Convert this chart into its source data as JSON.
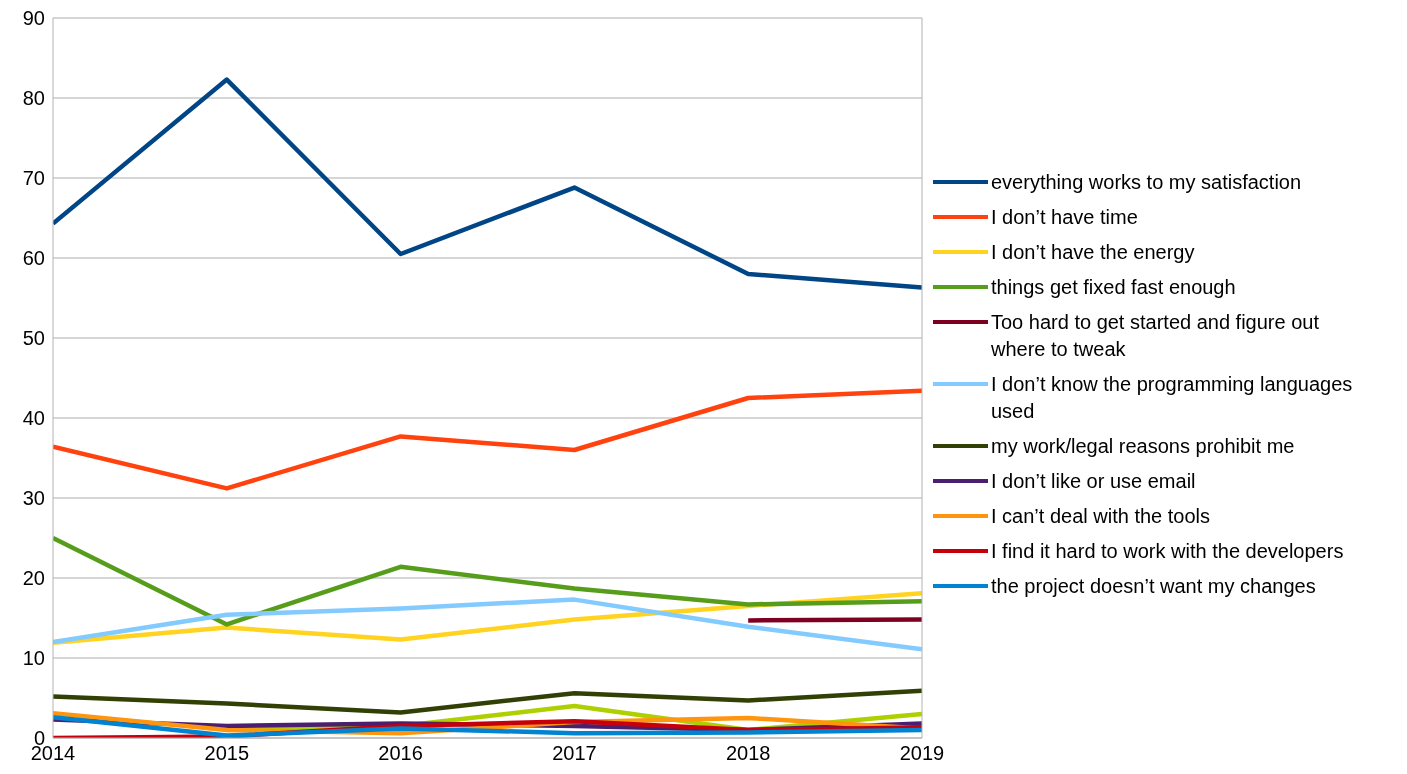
{
  "chart_data": {
    "type": "line",
    "x": [
      2014,
      2015,
      2016,
      2017,
      2018,
      2019
    ],
    "xlim": [
      2014,
      2019
    ],
    "xticks": [
      2014,
      2015,
      2016,
      2017,
      2018,
      2019
    ],
    "ylim": [
      0,
      90
    ],
    "yticks": [
      0,
      10,
      20,
      30,
      40,
      50,
      60,
      70,
      80,
      90
    ],
    "grid": "y",
    "legend": "right",
    "marker": "none",
    "line_style": "solid",
    "series": [
      {
        "name": "everything works to my satisfaction",
        "color": "#004586",
        "values": [
          64.3,
          82.3,
          60.5,
          68.8,
          58.0,
          56.3
        ]
      },
      {
        "name": "I don’t have time",
        "color": "#ff420e",
        "values": [
          36.4,
          31.2,
          37.7,
          36.0,
          42.5,
          43.4
        ]
      },
      {
        "name": "I don’t have the energy",
        "color": "#ffd320",
        "values": [
          11.9,
          13.8,
          12.3,
          14.8,
          16.5,
          18.1
        ]
      },
      {
        "name": "things get fixed fast enough",
        "color": "#579d1c",
        "values": [
          25.0,
          14.2,
          21.4,
          18.7,
          16.7,
          17.1
        ]
      },
      {
        "name": "Too hard to get started and figure out where to tweak",
        "color": "#7e0021",
        "values": [
          null,
          null,
          null,
          null,
          14.7,
          14.8
        ]
      },
      {
        "name": "I don’t know the programming languages used",
        "color": "#83caff",
        "values": [
          12.0,
          15.4,
          16.2,
          17.3,
          13.9,
          11.1
        ]
      },
      {
        "name": "my work/legal reasons prohibit me",
        "color": "#314004",
        "values": [
          5.2,
          4.3,
          3.2,
          5.6,
          4.7,
          5.9
        ]
      },
      {
        "color": "#aecf00",
        "values": [
          null,
          1.0,
          1.5,
          4.0,
          1.0,
          3.0
        ]
      },
      {
        "name": "I don’t like or use email",
        "color": "#4b1f6f",
        "values": [
          2.3,
          1.5,
          1.8,
          1.5,
          1.0,
          1.8
        ]
      },
      {
        "name": "I can’t deal with the tools",
        "color": "#ff950e",
        "values": [
          3.1,
          1.0,
          0.6,
          2.0,
          2.5,
          1.2
        ]
      },
      {
        "name": "I find it hard to work with the developers",
        "color": "#c5000b",
        "values": [
          0,
          0.2,
          1.5,
          2.1,
          1.0,
          1.3
        ]
      },
      {
        "name": "the project doesn’t want my changes",
        "color": "#0084d1",
        "values": [
          2.6,
          0.3,
          1.2,
          0.6,
          0.7,
          1.0
        ]
      }
    ]
  }
}
